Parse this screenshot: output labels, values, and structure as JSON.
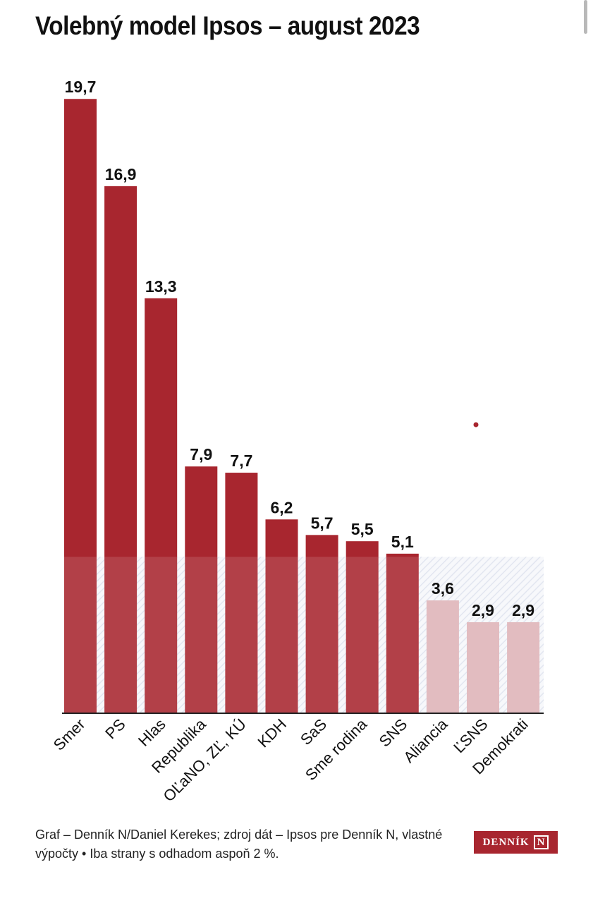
{
  "header": {
    "title": "Volebný model Ipsos – august 2023"
  },
  "chart_data": {
    "type": "bar",
    "title": "Volebný model Ipsos – august 2023",
    "xlabel": "",
    "ylabel": "",
    "ylim": [
      0,
      20
    ],
    "threshold": 5,
    "categories": [
      "Smer",
      "PS",
      "Hlas",
      "Republika",
      "OĽaNO, ZĽ, KÚ",
      "KDH",
      "SaS",
      "Sme rodina",
      "SNS",
      "Aliancia",
      "ĽSNS",
      "Demokrati"
    ],
    "values": [
      19.7,
      16.9,
      13.3,
      7.9,
      7.7,
      6.2,
      5.7,
      5.5,
      5.1,
      3.6,
      2.9,
      2.9
    ],
    "value_labels": [
      "19,7",
      "16,9",
      "13,3",
      "7,9",
      "7,7",
      "6,2",
      "5,7",
      "5,5",
      "5,1",
      "3,6",
      "2,9",
      "2,9"
    ],
    "colors": {
      "above_threshold": "#a8262f",
      "below_threshold": "#deb3b8",
      "threshold_band": "#e6e9f1"
    }
  },
  "footer": {
    "source": "Graf – Denník N/Daniel Kerekes; zdroj dát – Ipsos pre Denník N, vlastné výpočty • Iba strany s odhadom aspoň 2 %.",
    "logo_text": "DENNÍK",
    "logo_mark": "N"
  }
}
